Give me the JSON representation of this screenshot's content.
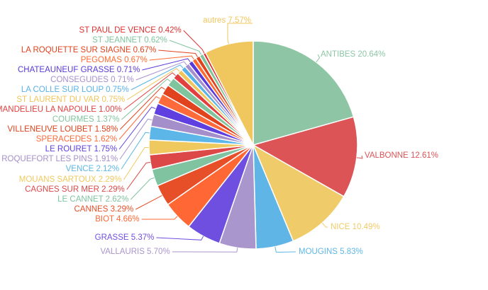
{
  "chart_data": {
    "type": "pie",
    "title": "",
    "slices": [
      {
        "label": "ANTIBES",
        "value": 20.64,
        "display": "20.64%",
        "color": "#8ec6a5"
      },
      {
        "label": "VALBONNE",
        "value": 12.61,
        "display": "12.61%",
        "color": "#dc5456"
      },
      {
        "label": "NICE",
        "value": 10.49,
        "display": "10.49%",
        "color": "#f0cb69"
      },
      {
        "label": "MOUGINS",
        "value": 5.83,
        "display": "5.83%",
        "color": "#5fb6e6"
      },
      {
        "label": "VALLAURIS",
        "value": 5.7,
        "display": "5.70%",
        "color": "#a996cc"
      },
      {
        "label": "GRASSE",
        "value": 5.37,
        "display": "5.37%",
        "color": "#6f4fe0"
      },
      {
        "label": "BIOT",
        "value": 4.66,
        "display": "4.66%",
        "color": "#ff6835"
      },
      {
        "label": "CANNES",
        "value": 3.29,
        "display": "3.29%",
        "color": "#e74f28"
      },
      {
        "label": "LE CANNET",
        "value": 2.62,
        "display": "2.62%",
        "color": "#7fc3a0"
      },
      {
        "label": "CAGNES SUR MER",
        "value": 2.29,
        "display": "2.29%",
        "color": "#dc4848"
      },
      {
        "label": "MOUANS SARTOUX",
        "value": 2.29,
        "display": "2.29%",
        "color": "#f0c95e"
      },
      {
        "label": "VENCE",
        "value": 2.12,
        "display": "2.12%",
        "color": "#5cb7e8"
      },
      {
        "label": "ROQUEFORT LES PINS",
        "value": 1.91,
        "display": "1.91%",
        "color": "#a58fcb"
      },
      {
        "label": "LE ROURET",
        "value": 1.75,
        "display": "1.75%",
        "color": "#5f3fe0"
      },
      {
        "label": "SPERACEDES",
        "value": 1.62,
        "display": "1.62%",
        "color": "#ff6a3a"
      },
      {
        "label": "VILLENEUVE LOUBET",
        "value": 1.58,
        "display": "1.58%",
        "color": "#e0431d"
      },
      {
        "label": "COURMES",
        "value": 1.37,
        "display": "1.37%",
        "color": "#7fc49d"
      },
      {
        "label": "MANDELIEU LA NAPOULE",
        "value": 1.0,
        "display": "1.00%",
        "color": "#e24040"
      },
      {
        "label": "ST LAURENT DU VAR",
        "value": 0.75,
        "display": "0.75%",
        "color": "#f0c65b"
      },
      {
        "label": "LA COLLE SUR LOUP",
        "value": 0.75,
        "display": "0.75%",
        "color": "#58b2e8"
      },
      {
        "label": "CONSEGUDES",
        "value": 0.71,
        "display": "0.71%",
        "color": "#a78fcf"
      },
      {
        "label": "CHATEAUNEUF GRASSE",
        "value": 0.71,
        "display": "0.71%",
        "color": "#5a39d8"
      },
      {
        "label": "PEGOMAS",
        "value": 0.67,
        "display": "0.67%",
        "color": "#ff6a30"
      },
      {
        "label": "LA ROQUETTE SUR SIAGNE",
        "value": 0.67,
        "display": "0.67%",
        "color": "#e0431d"
      },
      {
        "label": "ST JEANNET",
        "value": 0.62,
        "display": "0.62%",
        "color": "#7fc49d"
      },
      {
        "label": "ST PAUL DE VENCE",
        "value": 0.42,
        "display": "0.42%",
        "color": "#e03030"
      },
      {
        "label": "autres",
        "value": 7.57,
        "display": "7.57%",
        "color": "#f0c75e"
      }
    ]
  }
}
